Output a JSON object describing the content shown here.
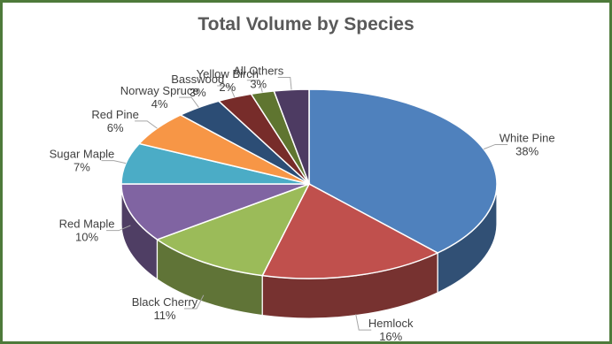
{
  "chart_data": {
    "type": "pie",
    "title": "Total Volume by Species",
    "categories": [
      "White Pine",
      "Hemlock",
      "Black Cherry",
      "Red Maple",
      "Sugar Maple",
      "Red Pine",
      "Norway Spruce",
      "Basswood",
      "Yellow Birch",
      "All Others"
    ],
    "values": [
      38,
      16,
      11,
      10,
      7,
      6,
      4,
      3,
      2,
      3
    ],
    "value_labels": [
      "38%",
      "16%",
      "11%",
      "10%",
      "7%",
      "6%",
      "4%",
      "3%",
      "2%",
      "3%"
    ],
    "colors": [
      "#4f81bd",
      "#c0504d",
      "#9bbb59",
      "#8064a2",
      "#4bacc6",
      "#f79646",
      "#2c4d75",
      "#772c2a",
      "#5f7530",
      "#4d3b62"
    ],
    "legend": "none",
    "style": "3d-pie"
  }
}
